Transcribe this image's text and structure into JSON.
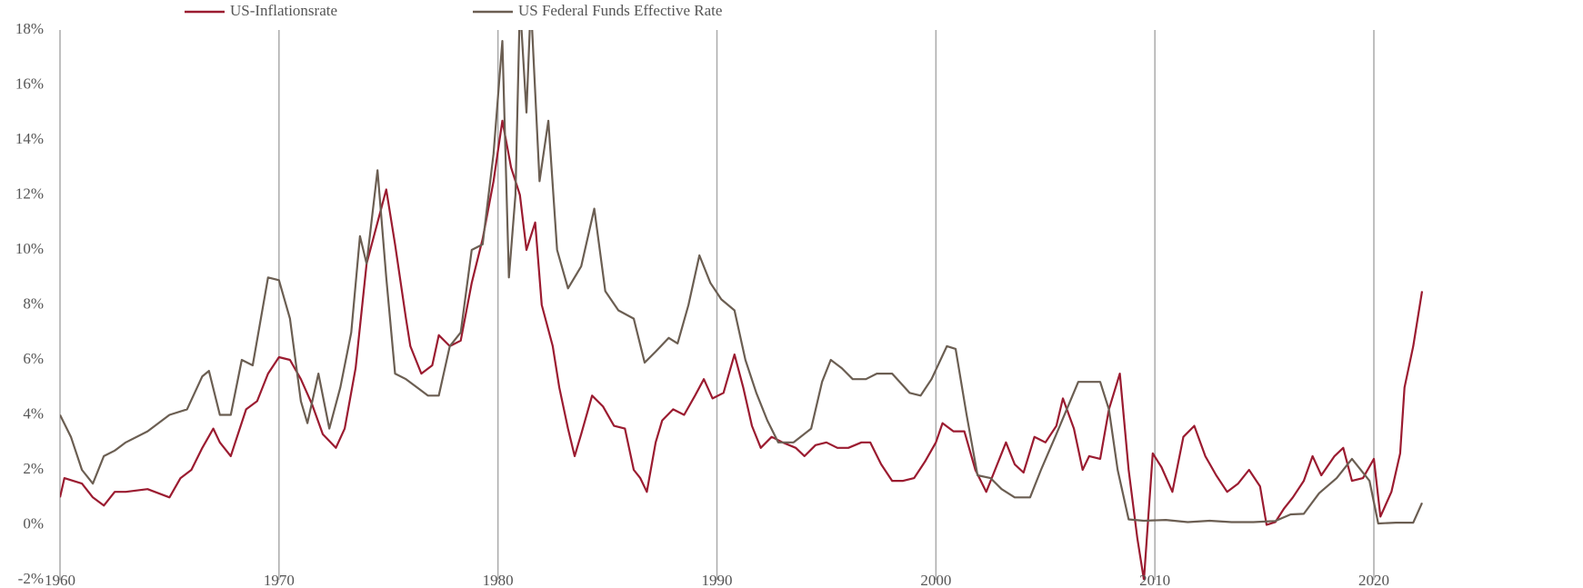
{
  "chart_data": {
    "type": "line",
    "xlim": [
      1960,
      2022.3
    ],
    "xticks": [
      1960,
      1970,
      1980,
      1990,
      2000,
      2010,
      2020
    ],
    "ylim": [
      -2,
      18
    ],
    "yticks": [
      {
        "value": -2,
        "label": "-2%"
      },
      {
        "value": 0,
        "label": "0%"
      },
      {
        "value": 2,
        "label": "2%"
      },
      {
        "value": 4,
        "label": "4%"
      },
      {
        "value": 6,
        "label": "6%"
      },
      {
        "value": 8,
        "label": "8%"
      },
      {
        "value": 10,
        "label": "10%"
      },
      {
        "value": 12,
        "label": "12%"
      },
      {
        "value": 14,
        "label": "14%"
      },
      {
        "value": 16,
        "label": "16%"
      },
      {
        "value": 18,
        "label": "18%"
      }
    ],
    "grid": "x",
    "series": [
      {
        "name": "US-Inflationsrate",
        "color": "#9b1b30",
        "x": [
          1960,
          1960.2,
          1961,
          1961.5,
          1962,
          1962.5,
          1963,
          1964,
          1965,
          1965.5,
          1966,
          1966.5,
          1967,
          1967.3,
          1967.8,
          1968,
          1968.5,
          1969,
          1969.5,
          1970,
          1970.5,
          1971,
          1971.5,
          1972,
          1972.6,
          1973,
          1973.5,
          1974,
          1974.5,
          1974.9,
          1975.3,
          1975.8,
          1976,
          1976.5,
          1977,
          1977.3,
          1977.8,
          1978.3,
          1978.8,
          1979.3,
          1979.8,
          1980.2,
          1980.6,
          1981,
          1981.3,
          1981.7,
          1982,
          1982.5,
          1982.8,
          1983.2,
          1983.5,
          1983.8,
          1984.3,
          1984.8,
          1985.3,
          1985.8,
          1986.2,
          1986.5,
          1986.8,
          1987.2,
          1987.5,
          1988,
          1988.5,
          1989,
          1989.4,
          1989.8,
          1990.3,
          1990.8,
          1991.2,
          1991.6,
          1992,
          1992.5,
          1993,
          1993.6,
          1994,
          1994.5,
          1995,
          1995.5,
          1996,
          1996.6,
          1997,
          1997.5,
          1998,
          1998.5,
          1999,
          1999.5,
          2000,
          2000.3,
          2000.8,
          2001.3,
          2001.8,
          2002.3,
          2002.8,
          2003.2,
          2003.6,
          2004,
          2004.5,
          2005,
          2005.5,
          2005.8,
          2006.3,
          2006.7,
          2007,
          2007.5,
          2007.9,
          2008.4,
          2008.8,
          2009.2,
          2009.5,
          2009.9,
          2010.3,
          2010.8,
          2011.3,
          2011.8,
          2012.3,
          2012.8,
          2013.3,
          2013.8,
          2014.3,
          2014.8,
          2015.1,
          2015.5,
          2015.9,
          2016.3,
          2016.8,
          2017.2,
          2017.6,
          2018.2,
          2018.6,
          2019,
          2019.5,
          2020,
          2020.3,
          2020.8,
          2021.2,
          2021.4,
          2021.8,
          2022.2
        ],
        "values": [
          1.0,
          1.7,
          1.5,
          1.0,
          0.7,
          1.2,
          1.2,
          1.3,
          1.0,
          1.7,
          2.0,
          2.8,
          3.5,
          3.0,
          2.5,
          3.0,
          4.2,
          4.5,
          5.5,
          6.1,
          6.0,
          5.3,
          4.4,
          3.3,
          2.8,
          3.5,
          5.7,
          9.5,
          11.0,
          12.2,
          10.2,
          7.5,
          6.5,
          5.5,
          5.8,
          6.9,
          6.5,
          6.7,
          8.8,
          10.4,
          12.5,
          14.7,
          13.0,
          12.0,
          10.0,
          11.0,
          8.0,
          6.5,
          5.0,
          3.5,
          2.5,
          3.3,
          4.7,
          4.3,
          3.6,
          3.5,
          2.0,
          1.7,
          1.2,
          3.0,
          3.8,
          4.2,
          4.0,
          4.7,
          5.3,
          4.6,
          4.8,
          6.2,
          5.0,
          3.6,
          2.8,
          3.2,
          3.0,
          2.8,
          2.5,
          2.9,
          3.0,
          2.8,
          2.8,
          3.0,
          3.0,
          2.2,
          1.6,
          1.6,
          1.7,
          2.3,
          3.0,
          3.7,
          3.4,
          3.4,
          2.0,
          1.2,
          2.2,
          3.0,
          2.2,
          1.9,
          3.2,
          3.0,
          3.6,
          4.6,
          3.5,
          2.0,
          2.5,
          2.4,
          4.2,
          5.5,
          2.0,
          -0.5,
          -2.0,
          2.6,
          2.1,
          1.2,
          3.2,
          3.6,
          2.5,
          1.8,
          1.2,
          1.5,
          2.0,
          1.4,
          0.0,
          0.1,
          0.6,
          1.0,
          1.6,
          2.5,
          1.8,
          2.5,
          2.8,
          1.6,
          1.7,
          2.4,
          0.3,
          1.2,
          2.6,
          5.0,
          6.5,
          8.5
        ]
      },
      {
        "name": "US Federal Funds Effective Rate",
        "color": "#6b5e52",
        "x": [
          1960,
          1960.5,
          1961,
          1961.5,
          1962,
          1962.5,
          1963,
          1964,
          1965,
          1965.8,
          1966.5,
          1966.8,
          1967.3,
          1967.8,
          1968.3,
          1968.8,
          1969.5,
          1970,
          1970.5,
          1971,
          1971.3,
          1971.8,
          1972.3,
          1972.8,
          1973.3,
          1973.7,
          1974,
          1974.5,
          1974.9,
          1975.3,
          1975.8,
          1976.3,
          1976.8,
          1977.3,
          1977.8,
          1978.3,
          1978.8,
          1979.3,
          1979.8,
          1980.2,
          1980.5,
          1980.8,
          1981,
          1981.3,
          1981.5,
          1981.9,
          1982.3,
          1982.7,
          1983.2,
          1983.8,
          1984.4,
          1984.9,
          1985.5,
          1986.2,
          1986.7,
          1987.2,
          1987.8,
          1988.2,
          1988.7,
          1989.2,
          1989.7,
          1990.2,
          1990.8,
          1991.3,
          1991.8,
          1992.3,
          1992.8,
          1993.5,
          1994.3,
          1994.8,
          1995.2,
          1995.7,
          1996.2,
          1996.8,
          1997.3,
          1998,
          1998.8,
          1999.3,
          1999.8,
          2000.5,
          2000.9,
          2001.4,
          2001.9,
          2002.5,
          2003,
          2003.6,
          2004.3,
          2004.8,
          2005.5,
          2006.5,
          2007.5,
          2007.9,
          2008.3,
          2008.8,
          2009.5,
          2010.5,
          2011.5,
          2012.5,
          2013.5,
          2014.5,
          2015.5,
          2016.2,
          2016.8,
          2017.5,
          2018.3,
          2019,
          2019.8,
          2020.2,
          2021,
          2021.8,
          2022.2
        ],
        "values": [
          4.0,
          3.2,
          2.0,
          1.5,
          2.5,
          2.7,
          3.0,
          3.4,
          4.0,
          4.2,
          5.4,
          5.6,
          4.0,
          4.0,
          6.0,
          5.8,
          9.0,
          8.9,
          7.5,
          4.5,
          3.7,
          5.5,
          3.5,
          5.0,
          7.0,
          10.5,
          9.5,
          12.9,
          9.0,
          5.5,
          5.3,
          5.0,
          4.7,
          4.7,
          6.5,
          7.0,
          10.0,
          10.2,
          13.5,
          17.6,
          9.0,
          12.0,
          19.0,
          15.0,
          19.0,
          12.5,
          14.7,
          10.0,
          8.6,
          9.4,
          11.5,
          8.5,
          7.8,
          7.5,
          5.9,
          6.3,
          6.8,
          6.6,
          8.0,
          9.8,
          8.8,
          8.2,
          7.8,
          6.0,
          4.8,
          3.8,
          3.0,
          3.0,
          3.5,
          5.2,
          6.0,
          5.7,
          5.3,
          5.3,
          5.5,
          5.5,
          4.8,
          4.7,
          5.3,
          6.5,
          6.4,
          4.0,
          1.8,
          1.7,
          1.3,
          1.0,
          1.0,
          2.0,
          3.3,
          5.2,
          5.2,
          4.2,
          2.0,
          0.2,
          0.15,
          0.18,
          0.1,
          0.15,
          0.1,
          0.1,
          0.14,
          0.38,
          0.4,
          1.15,
          1.7,
          2.4,
          1.6,
          0.05,
          0.08,
          0.08,
          0.8
        ]
      }
    ]
  }
}
